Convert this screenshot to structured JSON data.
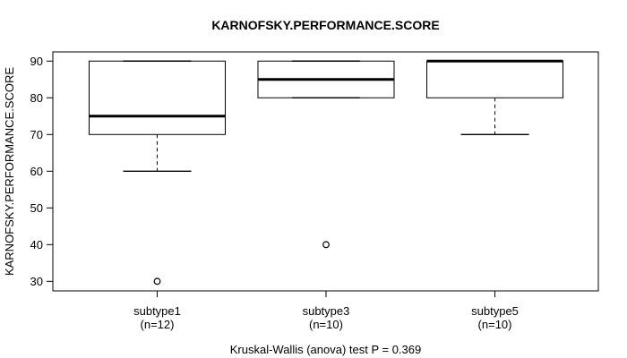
{
  "chart_data": {
    "type": "boxplot",
    "title": "KARNOFSKY.PERFORMANCE.SCORE",
    "ylabel": "KARNOFSKY.PERFORMANCE.SCORE",
    "xlabel": "",
    "annotation": "Kruskal-Wallis (anova) test P = 0.369",
    "y_ticks": [
      30,
      40,
      50,
      60,
      70,
      80,
      90
    ],
    "ylim": [
      27.4,
      92.5
    ],
    "grid": false,
    "legend": "none",
    "categories": [
      {
        "label": "subtype1",
        "sublabel": "(n=12)",
        "whisker_low": 60,
        "q1": 70,
        "median": 75,
        "q3": 90,
        "whisker_high": 90,
        "outliers": [
          30
        ]
      },
      {
        "label": "subtype3",
        "sublabel": "(n=10)",
        "whisker_low": 80,
        "q1": 80,
        "median": 85,
        "q3": 90,
        "whisker_high": 90,
        "outliers": [
          40
        ]
      },
      {
        "label": "subtype5",
        "sublabel": "(n=10)",
        "whisker_low": 70,
        "q1": 80,
        "median": 90,
        "q3": 90,
        "whisker_high": 90,
        "outliers": []
      }
    ],
    "colors": {
      "stroke": "#000000",
      "box_fill": "#ffffff",
      "background": "#ffffff"
    }
  }
}
